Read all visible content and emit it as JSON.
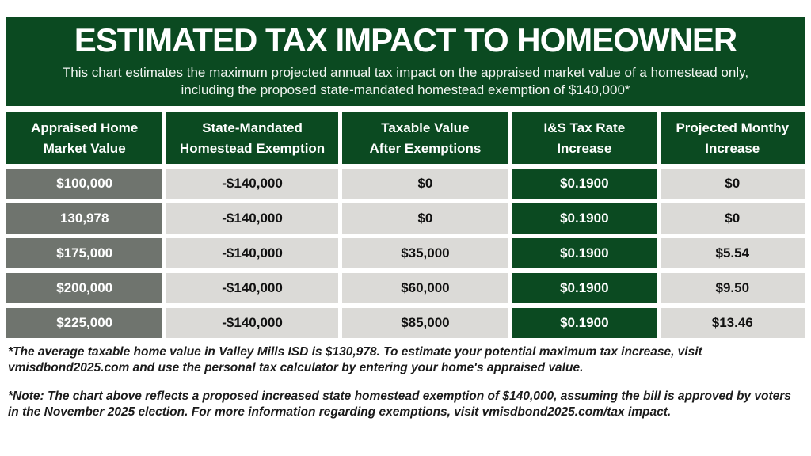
{
  "colors": {
    "brand_green": "#0b4a21",
    "first_column_gray": "#6f746e",
    "cell_light_gray": "#dbdad7",
    "text_white": "#ffffff",
    "text_black": "#111111"
  },
  "banner": {
    "title": "ESTIMATED TAX IMPACT TO HOMEOWNER",
    "subtitle_line1": "This chart estimates the maximum projected annual tax impact on the appraised market value of a homestead only,",
    "subtitle_line2": "including the proposed state-mandated homestead exemption of $140,000*"
  },
  "chart_data": {
    "type": "table",
    "title": "ESTIMATED TAX IMPACT TO HOMEOWNER",
    "columns": [
      "Appraised Home\nMarket Value",
      "State-Mandated\nHomestead Exemption",
      "Taxable Value\nAfter Exemptions",
      "I&S Tax Rate\nIncrease",
      "Projected Monthy\nIncrease"
    ],
    "rows": [
      [
        "$100,000",
        "-$140,000",
        "$0",
        "$0.1900",
        "$0"
      ],
      [
        "130,978",
        "-$140,000",
        "$0",
        "$0.1900",
        "$0"
      ],
      [
        "$175,000",
        "-$140,000",
        "$35,000",
        "$0.1900",
        "$5.54"
      ],
      [
        "$200,000",
        "-$140,000",
        "$60,000",
        "$0.1900",
        "$9.50"
      ],
      [
        "$225,000",
        "-$140,000",
        "$85,000",
        "$0.1900",
        "$13.46"
      ]
    ]
  },
  "footnotes": [
    "*The average taxable home value in Valley Mills ISD is $130,978. To estimate your potential maximum tax increase, visit vmisdbond2025.com and use the personal tax calculator by entering your home's appraised value.",
    "*Note: The chart above reflects a proposed increased state homestead exemption of $140,000, assuming the bill is approved by voters in the November 2025 election. For more information regarding exemptions, visit vmisdbond2025.com/tax impact."
  ]
}
